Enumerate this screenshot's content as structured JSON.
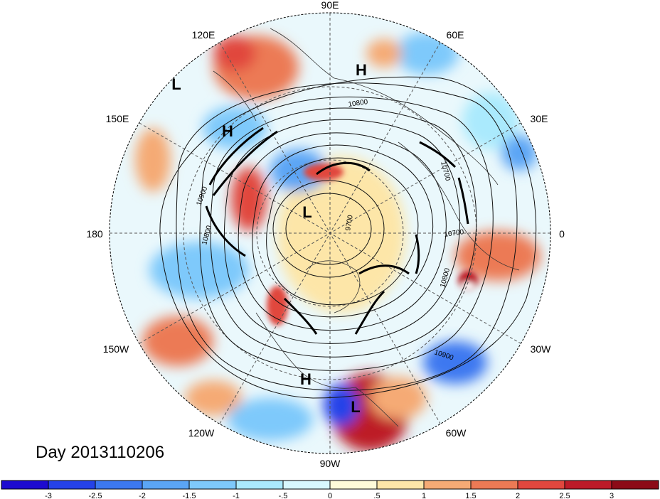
{
  "map": {
    "title": "Day 2013110206",
    "longitude_labels": [
      {
        "id": "lon-90e",
        "text": "90E"
      },
      {
        "id": "lon-60e",
        "text": "60E"
      },
      {
        "id": "lon-30e",
        "text": "30E"
      },
      {
        "id": "lon-0",
        "text": "0"
      },
      {
        "id": "lon-30w",
        "text": "30W"
      },
      {
        "id": "lon-60w",
        "text": "60W"
      },
      {
        "id": "lon-90w",
        "text": "90W"
      },
      {
        "id": "lon-120w",
        "text": "120W"
      },
      {
        "id": "lon-150w",
        "text": "150W"
      },
      {
        "id": "lon-180",
        "text": "180"
      },
      {
        "id": "lon-150e",
        "text": "150E"
      },
      {
        "id": "lon-120e",
        "text": "120E"
      }
    ],
    "pressure_markers": [
      {
        "id": "marker-l-nw",
        "text": "L"
      },
      {
        "id": "marker-h-n",
        "text": "H"
      },
      {
        "id": "marker-h-w",
        "text": "H"
      },
      {
        "id": "marker-l-center",
        "text": "L"
      },
      {
        "id": "marker-h-s",
        "text": "H"
      },
      {
        "id": "marker-l-s",
        "text": "L"
      }
    ],
    "contour_labels": [
      {
        "id": "contour-10800-top",
        "text": "10800"
      },
      {
        "id": "contour-10700-right",
        "text": "10700"
      },
      {
        "id": "contour-10900-left",
        "text": "10900"
      },
      {
        "id": "contour-10800-left",
        "text": "10800"
      },
      {
        "id": "contour-9700-center",
        "text": "9700"
      },
      {
        "id": "contour-10700-right2",
        "text": "10700"
      },
      {
        "id": "contour-10800-right",
        "text": "10800"
      },
      {
        "id": "contour-10900-bottom",
        "text": "10900"
      }
    ]
  },
  "colorbar": {
    "colors": [
      "#1d0bd0",
      "#2542e8",
      "#3c78f0",
      "#5ba5f5",
      "#7ec9fb",
      "#aaeafd",
      "#d8f8fe",
      "#fefbd9",
      "#fde6a8",
      "#f5aa75",
      "#ec7a55",
      "#e1473e",
      "#bd1b28",
      "#8c0b17"
    ],
    "labels": [
      "-3",
      "-2.5",
      "-2",
      "-1.5",
      "-1",
      "-.5",
      "0",
      ".5",
      "1",
      "1.5",
      "2",
      "2.5",
      "3"
    ]
  }
}
